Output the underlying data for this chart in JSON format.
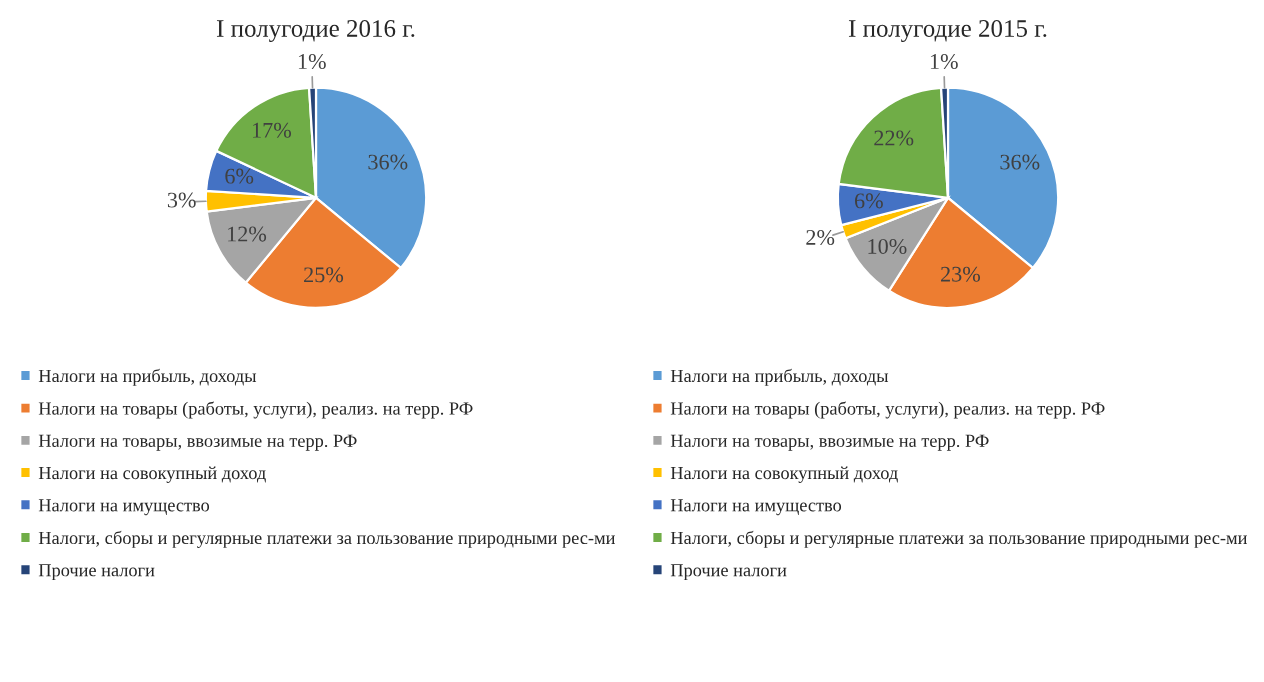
{
  "chart_data": [
    {
      "type": "pie",
      "title": "I полугодие 2016 г.",
      "categories": [
        "Налоги на прибыль, доходы",
        "Налоги на товары (работы, услуги), реализ. на терр. РФ",
        "Налоги на товары, ввозимые на терр. РФ",
        "Налоги на совокупный доход",
        "Налоги на имущество",
        "Налоги, сборы и регулярные платежи за пользование природными рес-ми",
        "Прочие налоги"
      ],
      "values": [
        36,
        25,
        12,
        3,
        6,
        17,
        1
      ],
      "value_labels": [
        "36%",
        "25%",
        "12%",
        "3%",
        "6%",
        "17%",
        "1%"
      ],
      "colors": [
        "#5b9bd5",
        "#ed7d31",
        "#a5a5a5",
        "#ffc000",
        "#4472c4",
        "#70ad47",
        "#264478"
      ],
      "legend": "bottom"
    },
    {
      "type": "pie",
      "title": "I полугодие 2015 г.",
      "categories": [
        "Налоги на прибыль, доходы",
        "Налоги на товары (работы, услуги), реализ. на терр. РФ",
        "Налоги на товары, ввозимые на терр. РФ",
        "Налоги на совокупный доход",
        "Налоги на имущество",
        "Налоги, сборы и регулярные платежи за пользование природными рес-ми",
        "Прочие налоги"
      ],
      "values": [
        36,
        23,
        10,
        2,
        6,
        22,
        1
      ],
      "value_labels": [
        "36%",
        "23%",
        "10%",
        "2%",
        "6%",
        "22%",
        "1%"
      ],
      "colors": [
        "#5b9bd5",
        "#ed7d31",
        "#a5a5a5",
        "#ffc000",
        "#4472c4",
        "#70ad47",
        "#264478"
      ],
      "legend": "bottom"
    }
  ]
}
